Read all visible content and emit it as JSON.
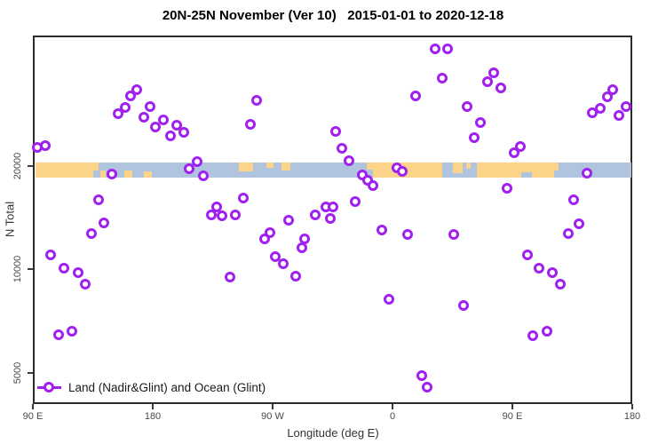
{
  "title": "20N-25N November (Ver 10)   2015-01-01 to 2020-12-18",
  "chart_data": {
    "type": "scatter",
    "title": "20N-25N November (Ver 10)   2015-01-01 to 2020-12-18",
    "xlabel": "Longitude (deg E)",
    "ylabel": "N Total",
    "x_axis": {
      "range": [
        -270,
        180
      ],
      "ticks": [
        -270,
        -180,
        -90,
        0,
        90,
        180
      ],
      "tick_labels": [
        "90 E",
        "180",
        "90 W",
        "0",
        "90 E",
        "180"
      ]
    },
    "y_axis": {
      "scale": "log",
      "range": [
        4060,
        48500
      ],
      "ticks": [
        5000,
        10000,
        20000
      ],
      "tick_labels": [
        "5000",
        "10000",
        "20000"
      ]
    },
    "legend": {
      "label": "Land (Nadir&Glint) and Ocean (Glint)",
      "position": "bottom-left"
    },
    "colors": {
      "marker": "#A020F0",
      "ocean_band": "#B0C4DE",
      "land_band": "#FBD389",
      "axis_text": "#4a4a4a"
    },
    "map_band": {
      "description": "world land/ocean strip for 20N-25N drawn at N=20000 level",
      "n_level": 20000,
      "land_patches": [
        [
          -270,
          -226,
          0,
          1.0
        ],
        [
          -226,
          -222,
          0,
          0.55
        ],
        [
          -221,
          -217,
          0.5,
          0.5
        ],
        [
          -203,
          -197,
          0.55,
          0.45
        ],
        [
          -188,
          -182,
          0.6,
          0.4
        ],
        [
          -117,
          -106,
          0,
          0.6
        ],
        [
          -96,
          -91,
          0,
          0.35
        ],
        [
          -85,
          -78,
          0,
          0.5
        ],
        [
          -21,
          -16,
          0,
          0.45
        ],
        [
          -16,
          36,
          0,
          1.0
        ],
        [
          44,
          51,
          0,
          0.7
        ],
        [
          54,
          57,
          0,
          0.4
        ],
        [
          62,
          95,
          0,
          1.0
        ],
        [
          95,
          103,
          0,
          0.65
        ],
        [
          103,
          120,
          0,
          1.0
        ],
        [
          120,
          123,
          0,
          0.5
        ]
      ]
    },
    "series": [
      {
        "name": "Land (Nadir&Glint) and Ocean (Glint)",
        "marker": "open-circle",
        "points_lon_n": [
          [
            -267,
            22600
          ],
          [
            -261,
            23000
          ],
          [
            -206,
            28400
          ],
          [
            -201,
            29600
          ],
          [
            -197,
            32000
          ],
          [
            -192,
            33400
          ],
          [
            -187,
            27700
          ],
          [
            -182,
            29800
          ],
          [
            -178,
            26000
          ],
          [
            -172,
            27200
          ],
          [
            -167,
            24500
          ],
          [
            -162,
            26300
          ],
          [
            -157,
            25100
          ],
          [
            -107,
            26500
          ],
          [
            -102,
            31100
          ],
          [
            -211,
            19000
          ],
          [
            -153,
            19600
          ],
          [
            -147,
            20600
          ],
          [
            -142,
            18750
          ],
          [
            -221,
            16000
          ],
          [
            -217,
            13700
          ],
          [
            -112,
            16100
          ],
          [
            -136,
            14400
          ],
          [
            -132,
            15200
          ],
          [
            -128,
            14300
          ],
          [
            -118,
            14400
          ],
          [
            -78,
            13900
          ],
          [
            -58,
            14400
          ],
          [
            -50,
            15200
          ],
          [
            -47,
            14100
          ],
          [
            32,
            43900
          ],
          [
            41,
            43900
          ],
          [
            37,
            36100
          ],
          [
            76,
            37300
          ],
          [
            71,
            35200
          ],
          [
            81,
            33800
          ],
          [
            17,
            32000
          ],
          [
            56,
            29800
          ],
          [
            66,
            26800
          ],
          [
            61,
            24200
          ],
          [
            96,
            22800
          ],
          [
            91,
            21900
          ],
          [
            165,
            33400
          ],
          [
            161,
            31800
          ],
          [
            156,
            29500
          ],
          [
            150,
            28600
          ],
          [
            175,
            29800
          ],
          [
            170,
            28100
          ],
          [
            -43,
            25200
          ],
          [
            -38,
            22500
          ],
          [
            -33,
            20700
          ],
          [
            -23,
            18800
          ],
          [
            -19,
            18200
          ],
          [
            -15,
            17500
          ],
          [
            -28,
            15800
          ],
          [
            -45,
            15200
          ],
          [
            3,
            19800
          ],
          [
            7,
            19300
          ],
          [
            146,
            19100
          ],
          [
            86,
            17200
          ],
          [
            136,
            16000
          ],
          [
            140,
            13600
          ],
          [
            -257,
            11000
          ],
          [
            -247,
            10100
          ],
          [
            -236,
            9800
          ],
          [
            -231,
            9060
          ],
          [
            -226,
            12700
          ],
          [
            -122,
            9510
          ],
          [
            -96,
            12300
          ],
          [
            -92,
            12800
          ],
          [
            -88,
            10900
          ],
          [
            -82,
            10400
          ],
          [
            -73,
            9570
          ],
          [
            -68,
            11600
          ],
          [
            -66,
            12300
          ],
          [
            -251,
            6460
          ],
          [
            -241,
            6610
          ],
          [
            -8,
            13000
          ],
          [
            11,
            12650
          ],
          [
            46,
            12650
          ],
          [
            101,
            11000
          ],
          [
            110,
            10100
          ],
          [
            120,
            9800
          ],
          [
            126,
            9060
          ],
          [
            132,
            12700
          ],
          [
            -3,
            8180
          ],
          [
            53,
            7850
          ],
          [
            105,
            6430
          ],
          [
            116,
            6610
          ],
          [
            22,
            4910
          ],
          [
            26,
            4550
          ]
        ]
      }
    ]
  }
}
